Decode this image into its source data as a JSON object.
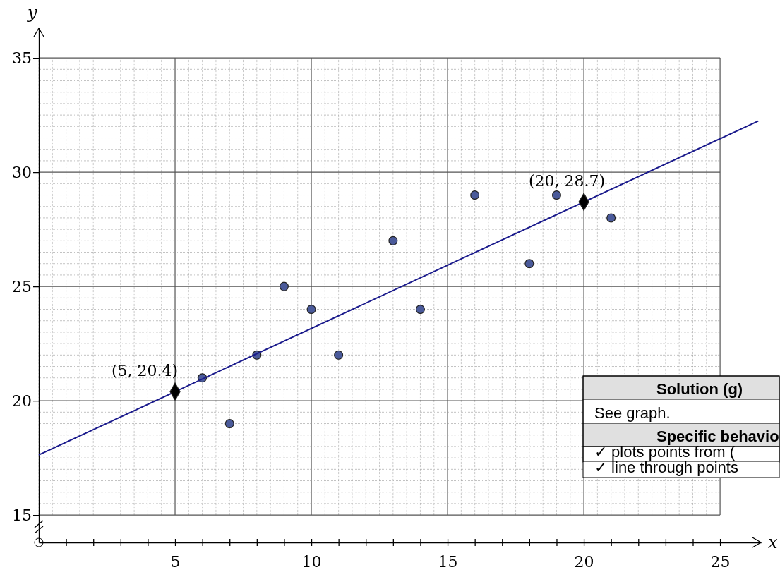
{
  "chart_data": {
    "type": "scatter",
    "xlabel": "x",
    "ylabel": "y",
    "xlim": [
      0,
      26.5
    ],
    "ylim": [
      13.8,
      36.3
    ],
    "xticks": [
      {
        "value": 1,
        "label": null
      },
      {
        "value": 2,
        "label": null
      },
      {
        "value": 3,
        "label": null
      },
      {
        "value": 4,
        "label": null
      },
      5,
      {
        "value": 6,
        "label": null
      },
      {
        "value": 7,
        "label": null
      },
      {
        "value": 8,
        "label": null
      },
      {
        "value": 9,
        "label": null
      },
      10,
      {
        "value": 11,
        "label": null
      },
      {
        "value": 12,
        "label": null
      },
      {
        "value": 13,
        "label": null
      },
      {
        "value": 14,
        "label": null
      },
      15,
      {
        "value": 16,
        "label": null
      },
      {
        "value": 17,
        "label": null
      },
      {
        "value": 18,
        "label": null
      },
      {
        "value": 19,
        "label": null
      },
      20,
      {
        "value": 21,
        "label": null
      },
      {
        "value": 22,
        "label": null
      },
      {
        "value": 23,
        "label": null
      },
      {
        "value": 24,
        "label": null
      },
      25
    ],
    "yticks": [
      15,
      20,
      25,
      30,
      35
    ],
    "grid": true,
    "series": [
      {
        "color": "#4a5a9a",
        "marker": "circle",
        "x": [
          6,
          7,
          8,
          9,
          10,
          11,
          13,
          14,
          16,
          18,
          19,
          21
        ],
        "values": [
          21,
          19,
          22,
          25,
          24,
          22,
          27,
          24,
          29,
          26,
          29,
          28
        ]
      },
      {
        "type": "line",
        "color": "#1a1a8c",
        "marker": "none",
        "line_style": "solid",
        "x": [
          0,
          26.4
        ],
        "values": [
          17.63,
          32.24
        ]
      },
      {
        "type": "scatter",
        "color": "#000000",
        "marker": "diamond",
        "x": [
          5,
          20
        ],
        "values": [
          20.4,
          28.7
        ]
      }
    ],
    "annotations": [
      {
        "text": "(5, 20.4)",
        "x": 5,
        "y": 20.4
      },
      {
        "text": "(20, 28.7)",
        "x": 20,
        "y": 28.7
      },
      "Solution (g)",
      "See graph.",
      "Specific behavio",
      "✓ plots points from (",
      "✓ line through points"
    ]
  }
}
